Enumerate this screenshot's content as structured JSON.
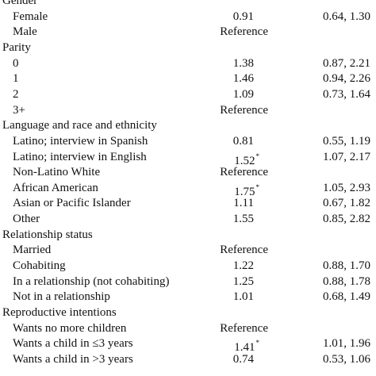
{
  "rows": [
    {
      "type": "heading",
      "label": "Gender"
    },
    {
      "type": "item",
      "label": "Female",
      "estimate": "0.91",
      "ci": "0.64, 1.30"
    },
    {
      "type": "item",
      "label": "Male",
      "estimate": "Reference",
      "ci": ""
    },
    {
      "type": "heading",
      "label": "Parity"
    },
    {
      "type": "item",
      "label": "0",
      "estimate": "1.38",
      "ci": "0.87, 2.21"
    },
    {
      "type": "item",
      "label": "1",
      "estimate": "1.46",
      "ci": "0.94, 2.26"
    },
    {
      "type": "item",
      "label": "2",
      "estimate": "1.09",
      "ci": "0.73, 1.64"
    },
    {
      "type": "item",
      "label": "3+",
      "estimate": "Reference",
      "ci": ""
    },
    {
      "type": "heading",
      "label": "Language and race and ethnicity"
    },
    {
      "type": "item",
      "label": "Latino; interview in Spanish",
      "estimate": "0.81",
      "ci": "0.55, 1.19"
    },
    {
      "type": "item",
      "label": "Latino; interview in English",
      "estimate": "1.52",
      "sig": "*",
      "ci": "1.07, 2.17"
    },
    {
      "type": "item",
      "label": "Non-Latino White",
      "estimate": "Reference",
      "ci": ""
    },
    {
      "type": "item",
      "label": "African American",
      "estimate": "1.75",
      "sig": "*",
      "ci": "1.05, 2.93"
    },
    {
      "type": "item",
      "label": "Asian or Pacific Islander",
      "estimate": "1.11",
      "ci": "0.67, 1.82"
    },
    {
      "type": "item",
      "label": "Other",
      "estimate": "1.55",
      "ci": "0.85, 2.82"
    },
    {
      "type": "heading",
      "label": "Relationship status"
    },
    {
      "type": "item",
      "label": "Married",
      "estimate": "Reference",
      "ci": ""
    },
    {
      "type": "item",
      "label": "Cohabiting",
      "estimate": "1.22",
      "ci": "0.88, 1.70"
    },
    {
      "type": "item",
      "label": "In a relationship (not cohabiting)",
      "estimate": "1.25",
      "ci": "0.88, 1.78"
    },
    {
      "type": "item",
      "label": "Not in a relationship",
      "estimate": "1.01",
      "ci": "0.68, 1.49"
    },
    {
      "type": "heading",
      "label": "Reproductive intentions"
    },
    {
      "type": "item",
      "label": "Wants no more children",
      "estimate": "Reference",
      "ci": ""
    },
    {
      "type": "item",
      "label": "Wants a child in ≤3 years",
      "estimate": "1.41",
      "sig": "*",
      "ci": "1.01, 1.96"
    },
    {
      "type": "item",
      "label": "Wants a child in >3 years",
      "estimate": "0.74",
      "ci": "0.53, 1.06"
    }
  ]
}
